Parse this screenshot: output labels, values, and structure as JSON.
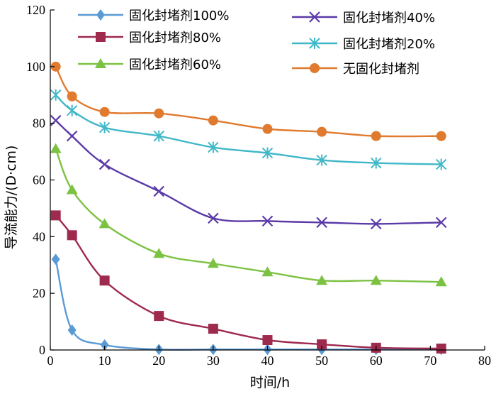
{
  "chart_data": {
    "type": "line",
    "title": "",
    "xlabel": "时间/h",
    "ylabel": "导流能力/(D·cm)",
    "xlim": [
      0,
      80
    ],
    "ylim": [
      0,
      120
    ],
    "xticks": [
      "0",
      "10",
      "20",
      "30",
      "40",
      "50",
      "60",
      "70",
      "80"
    ],
    "yticks": [
      "0",
      "20",
      "40",
      "60",
      "80",
      "100",
      "120"
    ],
    "grid": false,
    "legend_position": "top",
    "x": [
      1,
      4,
      10,
      20,
      30,
      40,
      50,
      60,
      72
    ],
    "series": [
      {
        "name": "固化封堵剂100%",
        "color": "#5b9bd5",
        "marker": "diamond",
        "values": [
          32,
          7,
          1.8,
          0.2,
          0.2,
          0.2,
          0.2,
          0.2,
          0.2
        ]
      },
      {
        "name": "固化封堵剂80%",
        "color": "#9e2a4e",
        "marker": "square",
        "values": [
          47.5,
          40.5,
          24.5,
          12,
          7.5,
          3.5,
          2,
          0.8,
          0.5
        ]
      },
      {
        "name": "固化封堵剂60%",
        "color": "#7cc242",
        "marker": "triangle",
        "values": [
          71,
          56.5,
          44.5,
          34,
          30.5,
          27.5,
          24.5,
          24.5,
          24
        ]
      },
      {
        "name": "固化封堵剂40%",
        "color": "#5b3aa8",
        "marker": "x",
        "values": [
          81,
          75.5,
          65.5,
          56,
          46.5,
          45.5,
          45,
          44.5,
          45
        ]
      },
      {
        "name": "固化封堵剂20%",
        "color": "#40b8c8",
        "marker": "asterisk",
        "values": [
          90,
          84.5,
          78.5,
          75.5,
          71.5,
          69.5,
          67,
          66,
          65.5
        ]
      },
      {
        "name": "无固化封堵剂",
        "color": "#e07a2e",
        "marker": "circle",
        "values": [
          100,
          89.5,
          84,
          83.5,
          81,
          78,
          77,
          75.5,
          75.5
        ]
      }
    ]
  }
}
